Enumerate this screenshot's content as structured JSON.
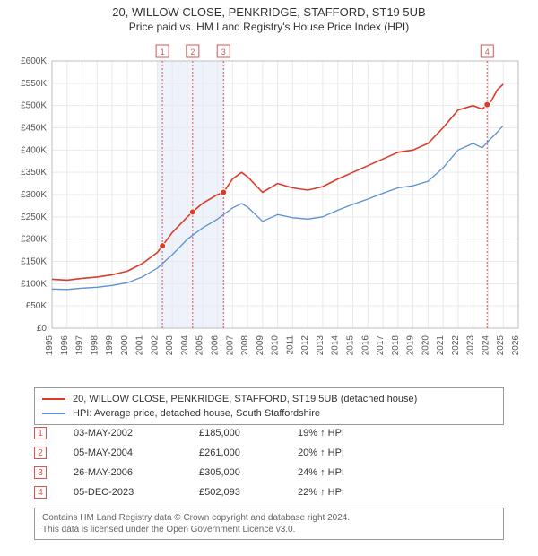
{
  "title_line1": "20, WILLOW CLOSE, PENKRIDGE, STAFFORD, ST19 5UB",
  "title_line2": "Price paid vs. HM Land Registry's House Price Index (HPI)",
  "chart": {
    "type": "line",
    "background_color": "#ffffff",
    "grid_color": "#e9e9e9",
    "axis_text_color": "#555555",
    "axis_font_size": 10,
    "x_years": [
      1995,
      1996,
      1997,
      1998,
      1999,
      2000,
      2001,
      2002,
      2003,
      2004,
      2005,
      2006,
      2007,
      2008,
      2009,
      2010,
      2011,
      2012,
      2013,
      2014,
      2015,
      2016,
      2017,
      2018,
      2019,
      2020,
      2021,
      2022,
      2023,
      2024,
      2025,
      2026
    ],
    "x_domain": [
      1995,
      2026
    ],
    "y_domain": [
      0,
      600000
    ],
    "y_ticks": [
      0,
      50000,
      100000,
      150000,
      200000,
      250000,
      300000,
      350000,
      400000,
      450000,
      500000,
      550000,
      600000
    ],
    "y_tick_labels": [
      "£0",
      "£50K",
      "£100K",
      "£150K",
      "£200K",
      "£250K",
      "£300K",
      "£350K",
      "£400K",
      "£450K",
      "£500K",
      "£550K",
      "£600K"
    ],
    "vertical_band": {
      "from_year": 2002,
      "to_year": 2006.5,
      "fill": "#eef3fb"
    },
    "series": [
      {
        "name": "property",
        "color": "#dd3b2a",
        "line_width": 1.6,
        "points": [
          [
            1995,
            110000
          ],
          [
            1996,
            108000
          ],
          [
            1997,
            112000
          ],
          [
            1998,
            115000
          ],
          [
            1999,
            120000
          ],
          [
            2000,
            128000
          ],
          [
            2001,
            145000
          ],
          [
            2002,
            170000
          ],
          [
            2002.34,
            185000
          ],
          [
            2003,
            215000
          ],
          [
            2004,
            250000
          ],
          [
            2004.35,
            261000
          ],
          [
            2005,
            280000
          ],
          [
            2006,
            300000
          ],
          [
            2006.4,
            305000
          ],
          [
            2007,
            335000
          ],
          [
            2007.6,
            350000
          ],
          [
            2008,
            340000
          ],
          [
            2009,
            305000
          ],
          [
            2010,
            325000
          ],
          [
            2011,
            315000
          ],
          [
            2012,
            310000
          ],
          [
            2013,
            318000
          ],
          [
            2014,
            335000
          ],
          [
            2015,
            350000
          ],
          [
            2016,
            365000
          ],
          [
            2017,
            380000
          ],
          [
            2018,
            395000
          ],
          [
            2019,
            400000
          ],
          [
            2020,
            415000
          ],
          [
            2021,
            450000
          ],
          [
            2022,
            490000
          ],
          [
            2023,
            500000
          ],
          [
            2023.6,
            492000
          ],
          [
            2023.93,
            502093
          ],
          [
            2024.2,
            510000
          ],
          [
            2024.6,
            535000
          ],
          [
            2025,
            548000
          ]
        ]
      },
      {
        "name": "hpi",
        "color": "#5b8fd6",
        "line_width": 1.3,
        "points": [
          [
            1995,
            88000
          ],
          [
            1996,
            87000
          ],
          [
            1997,
            90000
          ],
          [
            1998,
            92000
          ],
          [
            1999,
            96000
          ],
          [
            2000,
            102000
          ],
          [
            2001,
            115000
          ],
          [
            2002,
            135000
          ],
          [
            2003,
            165000
          ],
          [
            2004,
            200000
          ],
          [
            2005,
            225000
          ],
          [
            2006,
            245000
          ],
          [
            2007,
            270000
          ],
          [
            2007.6,
            280000
          ],
          [
            2008,
            272000
          ],
          [
            2009,
            240000
          ],
          [
            2010,
            255000
          ],
          [
            2011,
            248000
          ],
          [
            2012,
            245000
          ],
          [
            2013,
            250000
          ],
          [
            2014,
            265000
          ],
          [
            2015,
            278000
          ],
          [
            2016,
            290000
          ],
          [
            2017,
            303000
          ],
          [
            2018,
            315000
          ],
          [
            2019,
            320000
          ],
          [
            2020,
            330000
          ],
          [
            2021,
            360000
          ],
          [
            2022,
            400000
          ],
          [
            2023,
            415000
          ],
          [
            2023.6,
            405000
          ],
          [
            2024,
            420000
          ],
          [
            2024.6,
            440000
          ],
          [
            2025,
            455000
          ]
        ]
      }
    ],
    "event_markers": [
      {
        "idx": "1",
        "year": 2002.34,
        "color": "#d9534f"
      },
      {
        "idx": "2",
        "year": 2004.35,
        "color": "#d9534f"
      },
      {
        "idx": "3",
        "year": 2006.4,
        "color": "#d9534f"
      },
      {
        "idx": "4",
        "year": 2023.93,
        "color": "#d9534f"
      }
    ],
    "event_points": [
      {
        "year": 2002.34,
        "value": 185000,
        "color": "#dd3b2a"
      },
      {
        "year": 2004.35,
        "value": 261000,
        "color": "#dd3b2a"
      },
      {
        "year": 2006.4,
        "value": 305000,
        "color": "#dd3b2a"
      },
      {
        "year": 2023.93,
        "value": 502093,
        "color": "#dd3b2a"
      }
    ]
  },
  "legend": [
    {
      "color": "#dd3b2a",
      "label": "20, WILLOW CLOSE, PENKRIDGE, STAFFORD, ST19 5UB (detached house)"
    },
    {
      "color": "#5b8fd6",
      "label": "HPI: Average price, detached house, South Staffordshire"
    }
  ],
  "events_table": [
    {
      "idx": "1",
      "date": "03-MAY-2002",
      "price": "£185,000",
      "hpi_pct": "19% ↑ HPI"
    },
    {
      "idx": "2",
      "date": "05-MAY-2004",
      "price": "£261,000",
      "hpi_pct": "20% ↑ HPI"
    },
    {
      "idx": "3",
      "date": "26-MAY-2006",
      "price": "£305,000",
      "hpi_pct": "24% ↑ HPI"
    },
    {
      "idx": "4",
      "date": "05-DEC-2023",
      "price": "£502,093",
      "hpi_pct": "22% ↑ HPI"
    }
  ],
  "footer_line1": "Contains HM Land Registry data © Crown copyright and database right 2024.",
  "footer_line2": "This data is licensed under the Open Government Licence v3.0."
}
